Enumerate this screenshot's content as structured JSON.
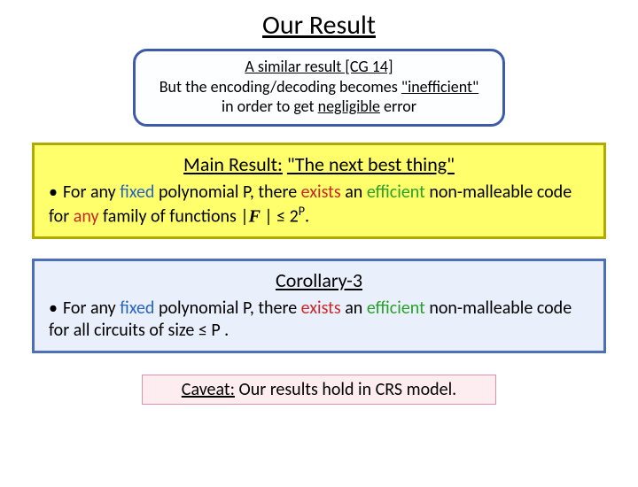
{
  "title": "Our Result",
  "similar": {
    "line1": "A similar result [CG 14]",
    "line2_a": "But the encoding/decoding becomes ",
    "line2_b": "\"inefficient\"",
    "line3_a": "in order to get ",
    "line3_b": "negligible",
    "line3_c": " error"
  },
  "main": {
    "heading_a": "Main Result:",
    "heading_b": " ",
    "heading_c": "\"The next best thing\"",
    "body_a": "For any ",
    "body_fixed": "fixed",
    "body_b": " polynomial P, there ",
    "body_exists": "exists",
    "body_c": " an ",
    "body_efficient": "efficient",
    "body_d": " non-malleable code for ",
    "body_e": "any",
    "body_f": " family of functions |",
    "body_f_symbol": "F",
    "body_g": " | ≤ 2",
    "body_h": "P",
    "body_i": "."
  },
  "corollary": {
    "heading": "Corollary-3",
    "body_a": "For any ",
    "body_fixed": "fixed",
    "body_b": " polynomial P, there ",
    "body_exists": "exists",
    "body_c": " an ",
    "body_efficient": "efficient",
    "body_d": " non-malleable code for all circuits of size ≤ P .",
    "body_e": ""
  },
  "caveat": {
    "lead": "Caveat:",
    "rest": " Our results hold in CRS model."
  },
  "colors": {
    "fixed": "#2666c1",
    "exists": "#c82828",
    "efficient": "#2aa02a",
    "similar_border": "#3d5ba9",
    "main_border": "#b0a900",
    "main_bg": "#fffe6b",
    "cor_border": "#4d6fb8",
    "cor_bg": "#e9effb",
    "caveat_border": "#e18fa6",
    "caveat_bg": "#fdecf0"
  }
}
